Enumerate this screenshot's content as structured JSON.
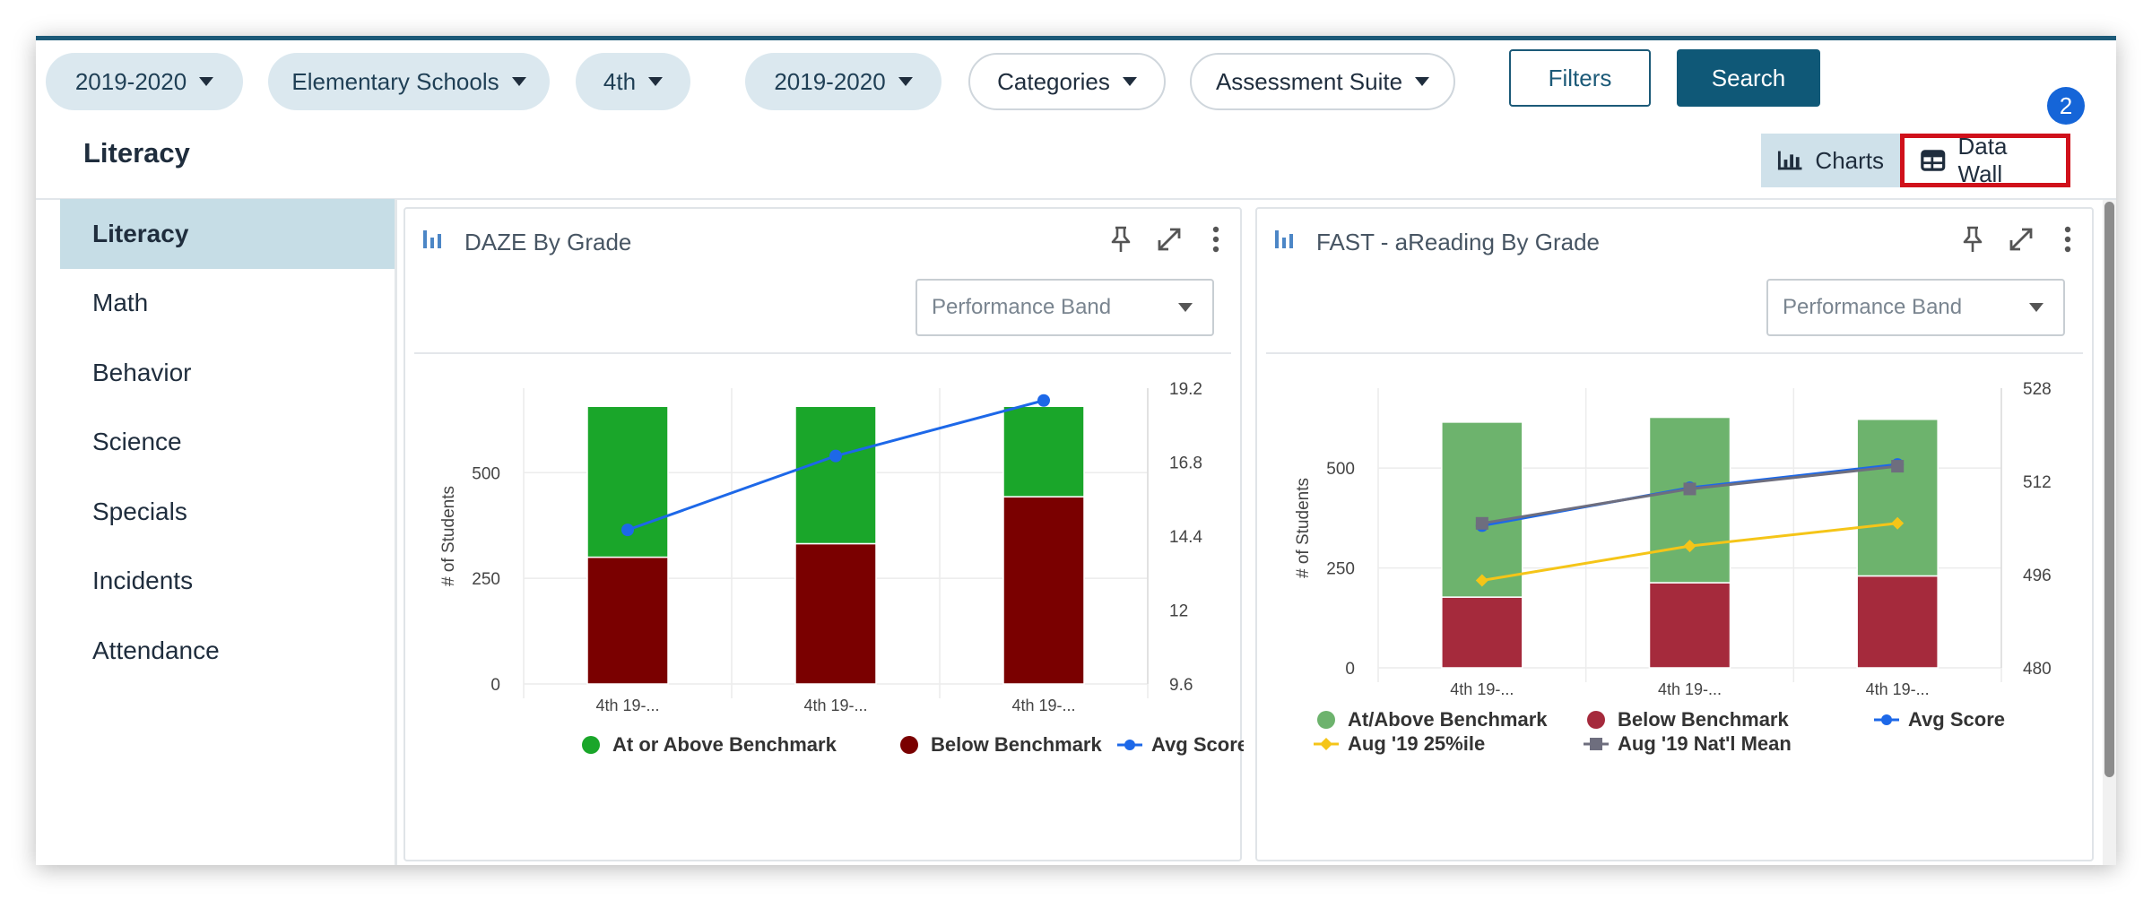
{
  "filters": {
    "pill1": "2019-2020",
    "pill2": "Elementary Schools",
    "pill3": "4th",
    "pill4": "2019-2020",
    "pill5": "Categories",
    "pill6": "Assessment Suite",
    "filters_label": "Filters",
    "search_label": "Search"
  },
  "page_title": "Literacy",
  "view_toggle": {
    "charts": "Charts",
    "data_wall": "Data Wall",
    "badge": "2"
  },
  "sidebar": {
    "items": [
      {
        "label": "Literacy",
        "active": true
      },
      {
        "label": "Math"
      },
      {
        "label": "Behavior"
      },
      {
        "label": "Science"
      },
      {
        "label": "Specials"
      },
      {
        "label": "Incidents"
      },
      {
        "label": "Attendance"
      }
    ]
  },
  "panels": [
    {
      "title": "DAZE By Grade",
      "select": "Performance Band"
    },
    {
      "title": "FAST - aReading By Grade",
      "select": "Performance Band"
    }
  ],
  "chart_data": [
    {
      "type": "bar",
      "title": "DAZE By Grade",
      "ylabel": "# of Students",
      "categories": [
        "4th 19-...",
        "4th 19-...",
        "4th 19-..."
      ],
      "ylim": [
        0,
        700
      ],
      "yticks": [
        "0",
        "250",
        "500"
      ],
      "ytick_values": [
        0,
        250,
        500
      ],
      "y2lim": [
        9.6,
        19.2
      ],
      "y2ticks": [
        "9.6",
        "12",
        "14.4",
        "16.8",
        "19.2"
      ],
      "y2tick_values": [
        9.6,
        12,
        14.4,
        16.8,
        19.2
      ],
      "series": [
        {
          "name": "Below Benchmark",
          "kind": "stack",
          "color": "#7a0000",
          "values": [
            300,
            332,
            443
          ]
        },
        {
          "name": "At or Above Benchmark",
          "kind": "stack",
          "color": "#1aa62a",
          "values": [
            357,
            325,
            214
          ]
        },
        {
          "name": "Avg Score",
          "kind": "line",
          "axis": "right",
          "color": "#1d68e8",
          "marker": "circle",
          "values": [
            14.6,
            17.0,
            18.8
          ]
        }
      ],
      "legend": [
        {
          "name": "At or Above Benchmark",
          "color": "#1aa62a",
          "marker": "dot"
        },
        {
          "name": "Below Benchmark",
          "color": "#7a0000",
          "marker": "dot"
        },
        {
          "name": "Avg Score",
          "color": "#1d68e8",
          "marker": "line"
        }
      ],
      "legend_position": "bottom"
    },
    {
      "type": "bar",
      "title": "FAST - aReading By Grade",
      "ylabel": "# of Students",
      "categories": [
        "4th 19-...",
        "4th 19-...",
        "4th 19-..."
      ],
      "ylim": [
        0,
        700
      ],
      "yticks": [
        "0",
        "250",
        "500"
      ],
      "ytick_values": [
        0,
        250,
        500
      ],
      "y2lim": [
        480,
        528
      ],
      "y2ticks": [
        "480",
        "496",
        "512",
        "528"
      ],
      "y2tick_values": [
        480,
        496,
        512,
        528
      ],
      "series": [
        {
          "name": "Below Benchmark",
          "kind": "stack",
          "color": "#a52a3c",
          "values": [
            177,
            213,
            230
          ]
        },
        {
          "name": "At/Above Benchmark",
          "kind": "stack",
          "color": "#6db36d",
          "values": [
            438,
            414,
            392
          ]
        },
        {
          "name": "Avg Score",
          "kind": "line",
          "axis": "right",
          "color": "#1d68e8",
          "marker": "circle",
          "values": [
            504.4,
            510.9,
            514.9
          ]
        },
        {
          "name": "Aug '19 25%ile",
          "kind": "line",
          "axis": "right",
          "color": "#f5c518",
          "marker": "diamond",
          "values": [
            495.0,
            500.9,
            504.8
          ]
        },
        {
          "name": "Aug '19 Nat'l Mean",
          "kind": "line",
          "axis": "right",
          "color": "#6e6e7e",
          "marker": "square",
          "values": [
            504.8,
            510.7,
            514.6
          ]
        }
      ],
      "legend": [
        {
          "name": "At/Above Benchmark",
          "color": "#6db36d",
          "marker": "dot"
        },
        {
          "name": "Below Benchmark",
          "color": "#a52a3c",
          "marker": "dot"
        },
        {
          "name": "Avg Score",
          "color": "#1d68e8",
          "marker": "line"
        },
        {
          "name": "Aug '19 25%ile",
          "color": "#f5c518",
          "marker": "diamond-line"
        },
        {
          "name": "Aug '19 Nat'l Mean",
          "color": "#6e6e7e",
          "marker": "square-line"
        }
      ],
      "legend_position": "bottom"
    }
  ]
}
